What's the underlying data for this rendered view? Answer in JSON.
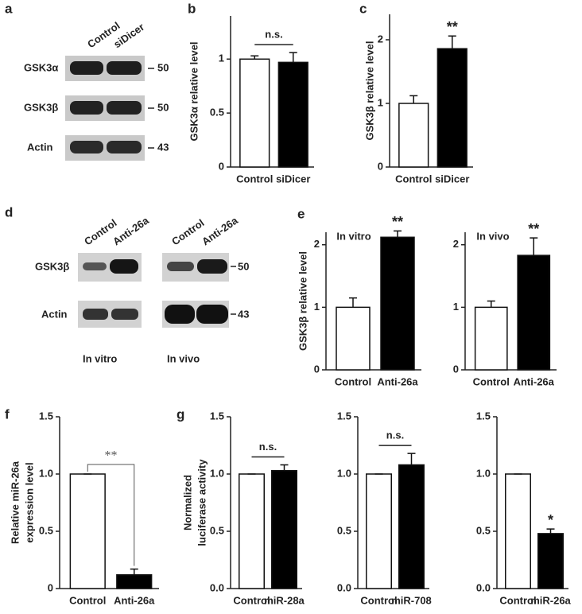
{
  "blots": [
    {
      "panel": "a",
      "lanes": [
        "Control",
        "siDicer"
      ],
      "rows": [
        {
          "label": "GSK3α",
          "marker": "50"
        },
        {
          "label": "GSK3β",
          "marker": "50"
        },
        {
          "label": "Actin",
          "marker": "43"
        }
      ]
    },
    {
      "panel": "d",
      "groups": [
        {
          "name": "In vitro",
          "lanes": [
            "Control",
            "Anti-26a"
          ]
        },
        {
          "name": "In vivo",
          "lanes": [
            "Control",
            "Anti-26a"
          ]
        }
      ],
      "rows": [
        {
          "label": "GSK3β",
          "marker": "50"
        },
        {
          "label": "Actin",
          "marker": "43"
        }
      ]
    }
  ],
  "chart_data": [
    {
      "type": "bar",
      "panel": "b",
      "ylabel": "GSK3α relative level",
      "categories": [
        "Control",
        "siDicer"
      ],
      "values": [
        1.0,
        0.97
      ],
      "errors": [
        0.03,
        0.09
      ],
      "colors": [
        "#ffffff",
        "#000000"
      ],
      "ylim": [
        0,
        1.4
      ],
      "yticks": [
        0,
        0.5,
        1
      ],
      "annotation": "n.s.",
      "annotation_style": "line"
    },
    {
      "type": "bar",
      "panel": "c",
      "ylabel": "GSK3β relative  level",
      "categories": [
        "Control",
        "siDicer"
      ],
      "values": [
        1.0,
        1.86
      ],
      "errors": [
        0.12,
        0.2
      ],
      "colors": [
        "#ffffff",
        "#000000"
      ],
      "ylim": [
        0,
        2.4
      ],
      "yticks": [
        0,
        1,
        2
      ],
      "annotation": "**",
      "annotation_style": "star"
    },
    {
      "type": "bar",
      "panel": "e",
      "title": "In vitro",
      "ylabel": "GSK3β relative level",
      "categories": [
        "Control",
        "Anti-26a"
      ],
      "values": [
        1.0,
        2.12
      ],
      "errors": [
        0.15,
        0.1
      ],
      "colors": [
        "#ffffff",
        "#000000"
      ],
      "ylim": [
        0,
        2.2
      ],
      "yticks": [
        0,
        1,
        2
      ],
      "annotation": "**",
      "annotation_style": "star"
    },
    {
      "type": "bar",
      "title": "In vivo",
      "categories": [
        "Control",
        "Anti-26a"
      ],
      "values": [
        1.0,
        1.83
      ],
      "errors": [
        0.1,
        0.28
      ],
      "colors": [
        "#ffffff",
        "#000000"
      ],
      "ylim": [
        0,
        2.2
      ],
      "yticks": [
        0,
        1,
        2
      ],
      "annotation": "**",
      "annotation_style": "star"
    },
    {
      "type": "bar",
      "panel": "f",
      "ylabel": [
        "Relative miR-26a",
        "expression level"
      ],
      "categories": [
        "Control",
        "Anti-26a"
      ],
      "values": [
        1.0,
        0.12
      ],
      "errors": [
        0,
        0.05
      ],
      "colors": [
        "#ffffff",
        "#000000"
      ],
      "ylim": [
        0,
        1.5
      ],
      "yticks": [
        0,
        0.5,
        {
          "value": 1.0,
          "label": "1.0"
        },
        {
          "value": 1.5,
          "label": "1.5"
        }
      ],
      "annotation": "**",
      "annotation_style": "bracket"
    },
    {
      "type": "bar",
      "panel": "g",
      "ylabel": [
        "Normalized",
        "luciferase activity"
      ],
      "categories": [
        "Control",
        "miR-28a"
      ],
      "values": [
        1.0,
        1.03
      ],
      "errors": [
        0,
        0.05
      ],
      "colors": [
        "#ffffff",
        "#000000"
      ],
      "ylim": [
        0,
        1.5
      ],
      "yticks": [
        {
          "value": 0,
          "label": "0.0"
        },
        0.5,
        {
          "value": 1.0,
          "label": "1.0"
        },
        {
          "value": 1.5,
          "label": "1.5"
        }
      ],
      "annotation": "n.s.",
      "annotation_style": "line"
    },
    {
      "type": "bar",
      "categories": [
        "Control",
        "miR-708"
      ],
      "values": [
        1.0,
        1.08
      ],
      "errors": [
        0,
        0.1
      ],
      "colors": [
        "#ffffff",
        "#000000"
      ],
      "ylim": [
        0,
        1.5
      ],
      "yticks": [
        {
          "value": 0,
          "label": "0.0"
        },
        0.5,
        {
          "value": 1.0,
          "label": "1.0"
        },
        {
          "value": 1.5,
          "label": "1.5"
        }
      ],
      "annotation": "n.s.",
      "annotation_style": "line"
    },
    {
      "type": "bar",
      "categories": [
        "Control",
        "miR-26a"
      ],
      "values": [
        1.0,
        0.48
      ],
      "errors": [
        0,
        0.04
      ],
      "colors": [
        "#ffffff",
        "#000000"
      ],
      "ylim": [
        0,
        1.5
      ],
      "yticks": [
        {
          "value": 0,
          "label": "0.0"
        },
        0.5,
        {
          "value": 1.0,
          "label": "1.0"
        },
        {
          "value": 1.5,
          "label": "1.5"
        }
      ],
      "annotation": "*",
      "annotation_style": "star"
    }
  ]
}
